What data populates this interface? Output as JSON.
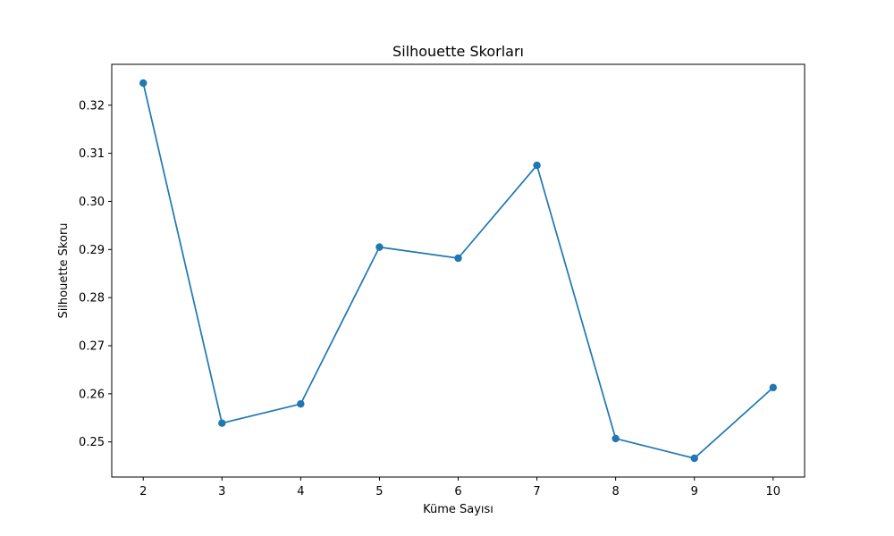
{
  "chart_data": {
    "type": "line",
    "title": "Silhouette Skorları",
    "xlabel": "Küme Sayısı",
    "ylabel": "Silhouette Skoru",
    "x": [
      2,
      3,
      4,
      5,
      6,
      7,
      8,
      9,
      10
    ],
    "series": [
      {
        "values": [
          0.3246,
          0.2539,
          0.2579,
          0.2905,
          0.2882,
          0.3075,
          0.2507,
          0.2466,
          0.2613
        ],
        "color": "#1f77b4",
        "marker": "circle"
      }
    ],
    "xticks": [
      2,
      3,
      4,
      5,
      6,
      7,
      8,
      9,
      10
    ],
    "yticks": [
      0.25,
      0.26,
      0.27,
      0.28,
      0.29,
      0.3,
      0.31,
      0.32
    ],
    "ytick_labels": [
      "0.25",
      "0.26",
      "0.27",
      "0.28",
      "0.29",
      "0.30",
      "0.31",
      "0.32"
    ],
    "xlim": [
      1.6,
      10.4
    ],
    "ylim": [
      0.2427,
      0.3285
    ],
    "grid": false
  }
}
